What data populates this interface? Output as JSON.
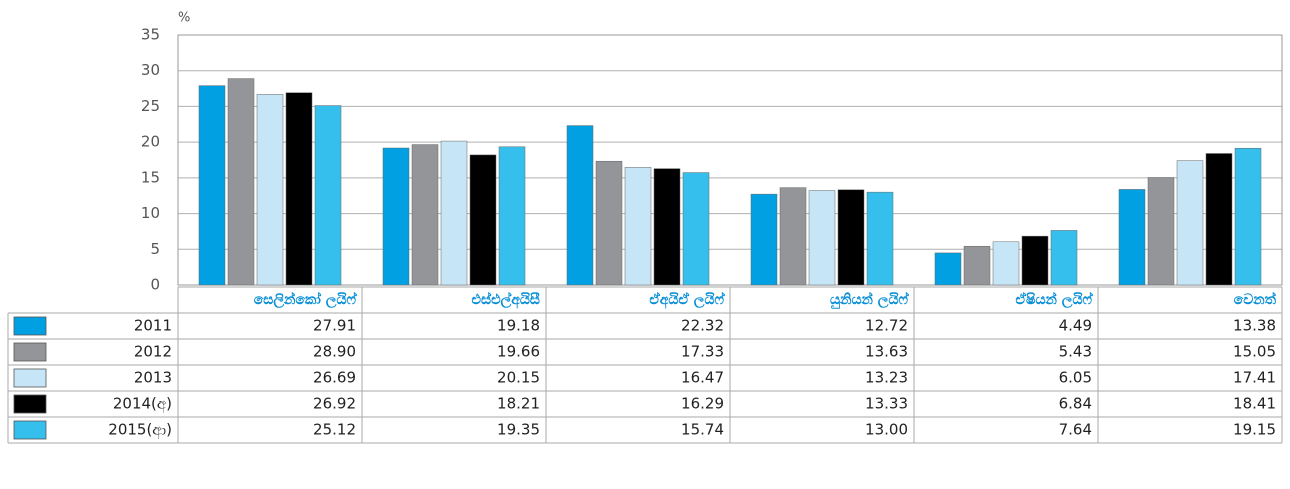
{
  "chart_data": {
    "type": "bar",
    "ylabel": "%",
    "categories": [
      "සෙලින්කෝ ලයිෆ්",
      "එස්එල්අයිසී",
      "ඒඅයිඒ ලයිෆ්",
      "යුනියන් ලයිෆ්",
      "ඒෂියන් ලයිෆ්",
      "වෙනත්"
    ],
    "series": [
      {
        "name": "2011",
        "color": "#00a0e3",
        "values": [
          27.91,
          19.18,
          22.32,
          12.72,
          4.49,
          13.38
        ],
        "value_labels": [
          "27.91",
          "19.18",
          "22.32",
          "12.72",
          "4.49",
          "13.38"
        ]
      },
      {
        "name": "2012",
        "color": "#939598",
        "values": [
          28.9,
          19.66,
          17.33,
          13.63,
          5.43,
          15.05
        ],
        "value_labels": [
          "28.90",
          "19.66",
          "17.33",
          "13.63",
          "5.43",
          "15.05"
        ]
      },
      {
        "name": "2013",
        "color": "#c6e6f8",
        "values": [
          26.69,
          20.15,
          16.47,
          13.23,
          6.05,
          17.41
        ],
        "value_labels": [
          "26.69",
          "20.15",
          "16.47",
          "13.23",
          "6.05",
          "17.41"
        ]
      },
      {
        "name": "2014(අ)",
        "color": "#000000",
        "values": [
          26.92,
          18.21,
          16.29,
          13.33,
          6.84,
          18.41
        ],
        "value_labels": [
          "26.92",
          "18.21",
          "16.29",
          "13.33",
          "6.84",
          "18.41"
        ]
      },
      {
        "name": "2015(ආ)",
        "color": "#35bfec",
        "values": [
          25.12,
          19.35,
          15.74,
          13.0,
          7.64,
          19.15
        ],
        "value_labels": [
          "25.12",
          "19.35",
          "15.74",
          "13.00",
          "7.64",
          "19.15"
        ]
      }
    ],
    "ylim": [
      0,
      35
    ],
    "yticks": [
      0,
      5,
      10,
      15,
      20,
      25,
      30,
      35
    ],
    "grid": true
  }
}
